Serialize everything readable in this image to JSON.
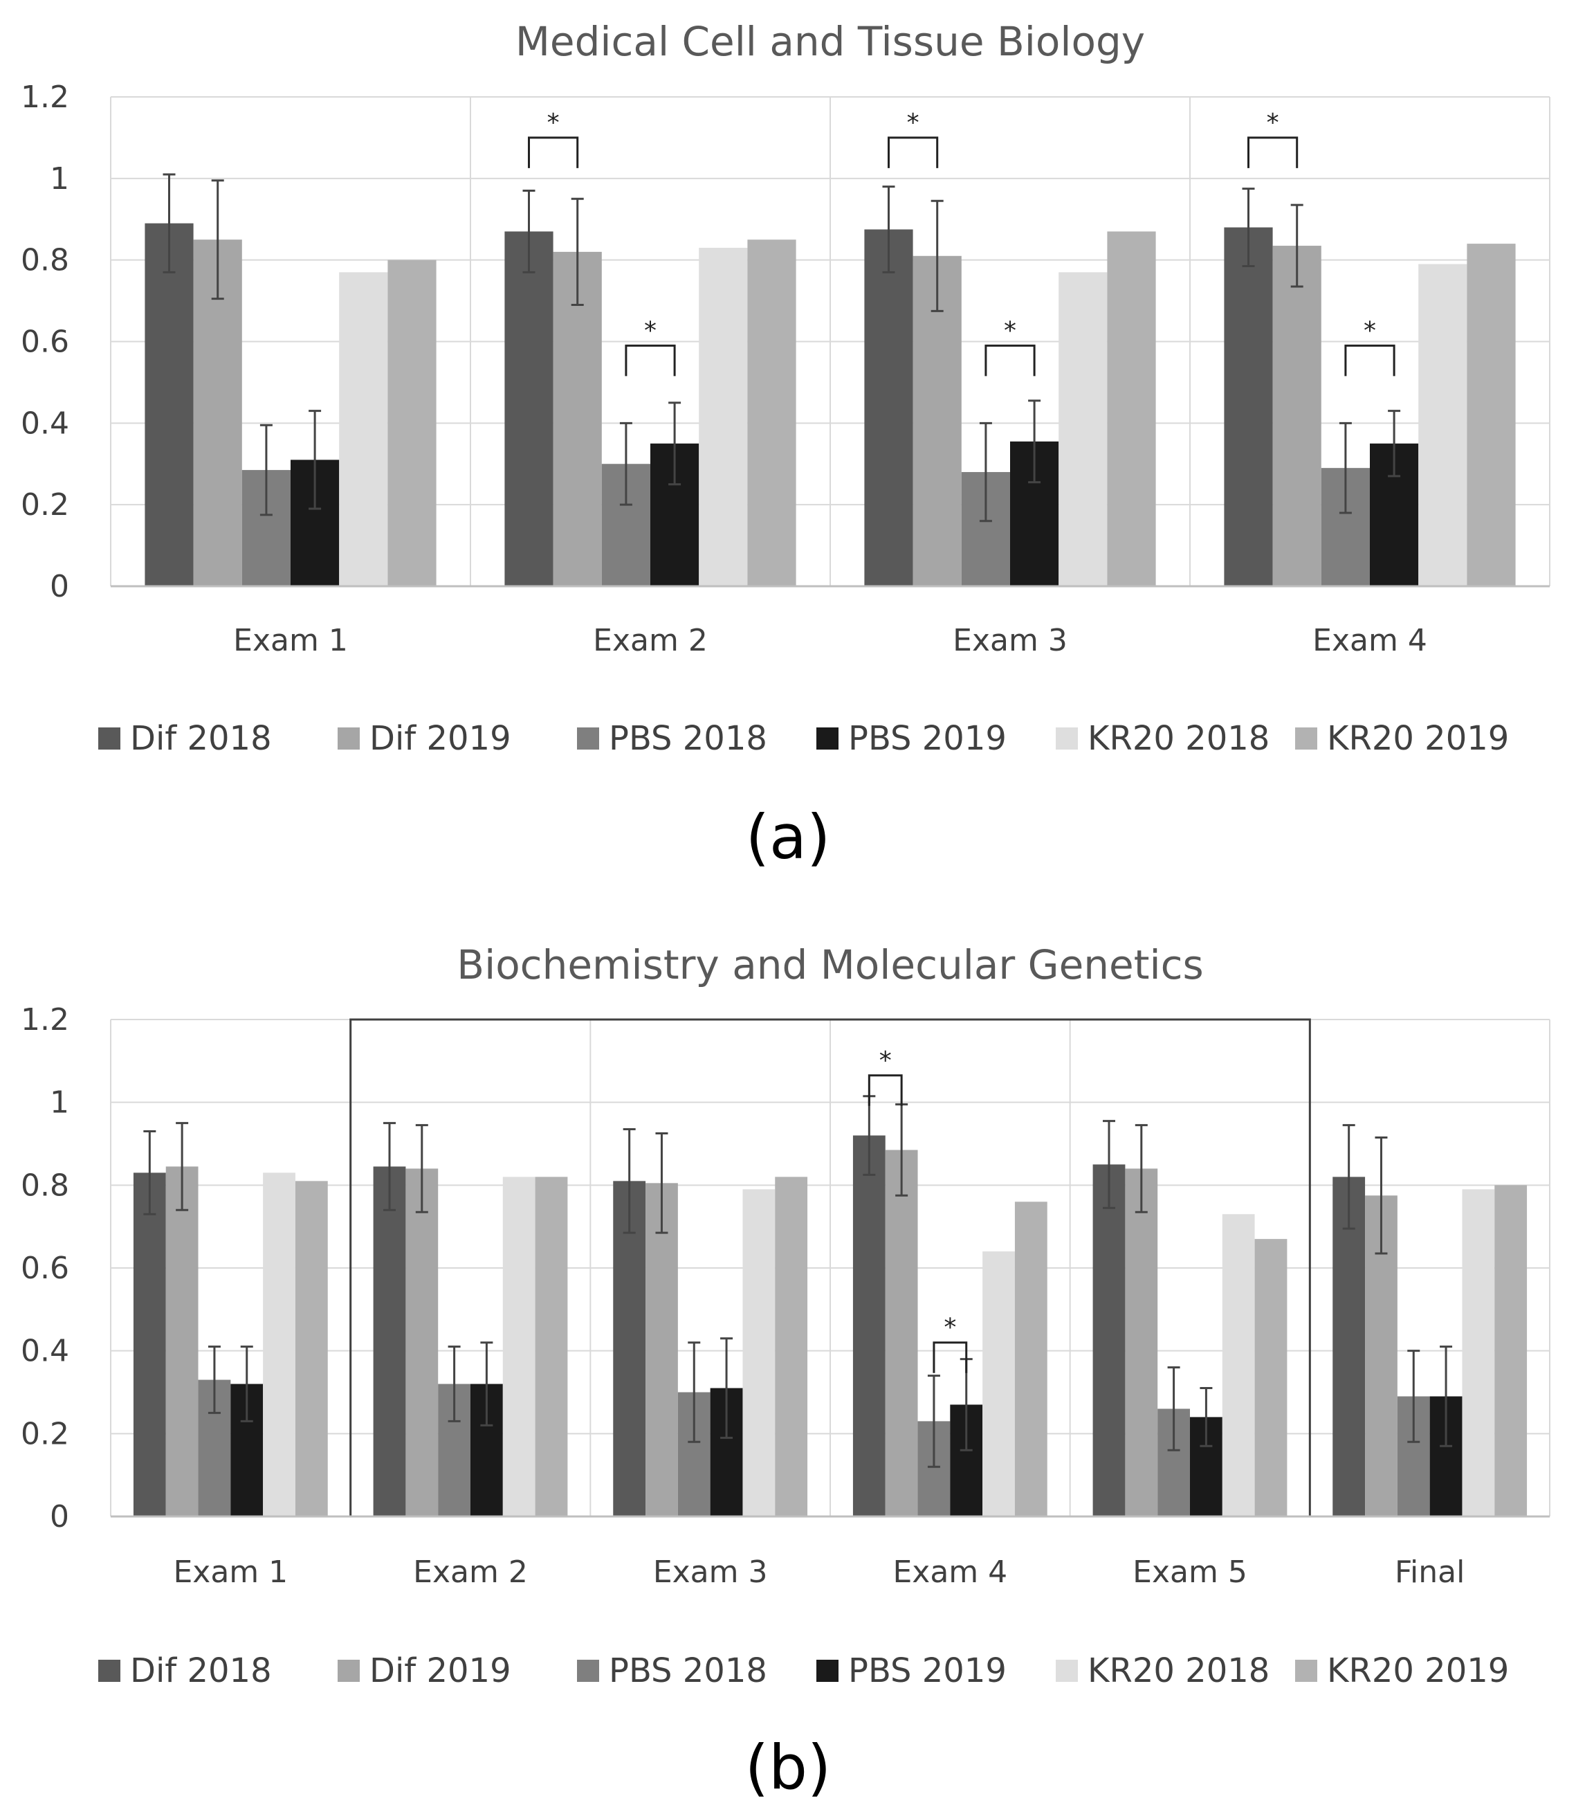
{
  "chart_data": [
    {
      "type": "bar",
      "title": "Medical Cell and Tissue Biology",
      "panel_label": "(a)",
      "xlabel": "",
      "ylabel": "",
      "ylim": [
        0,
        1.2
      ],
      "yticks": [
        "0",
        "0.2",
        "0.4",
        "0.6",
        "0.8",
        "1",
        "1.2"
      ],
      "categories": [
        "Exam 1",
        "Exam 2",
        "Exam 3",
        "Exam 4"
      ],
      "series": [
        {
          "name": "Dif 2018",
          "color": "#595959",
          "values": [
            0.89,
            0.87,
            0.875,
            0.88
          ],
          "errors": [
            0.12,
            0.1,
            0.105,
            0.095
          ]
        },
        {
          "name": "Dif 2019",
          "color": "#a6a6a6",
          "values": [
            0.85,
            0.82,
            0.81,
            0.835
          ],
          "errors": [
            0.145,
            0.13,
            0.135,
            0.1
          ]
        },
        {
          "name": "PBS 2018",
          "color": "#7f7f7f",
          "values": [
            0.285,
            0.3,
            0.28,
            0.29
          ],
          "errors": [
            0.11,
            0.1,
            0.12,
            0.11
          ]
        },
        {
          "name": "PBS 2019",
          "color": "#1a1a1a",
          "values": [
            0.31,
            0.35,
            0.355,
            0.35
          ],
          "errors": [
            0.12,
            0.1,
            0.1,
            0.08
          ]
        },
        {
          "name": "KR20 2018",
          "color": "#dedede",
          "values": [
            0.77,
            0.83,
            0.77,
            0.79
          ],
          "errors": null
        },
        {
          "name": "KR20 2019",
          "color": "#b2b2b2",
          "values": [
            0.8,
            0.85,
            0.87,
            0.84
          ],
          "errors": null
        }
      ],
      "significance": [
        {
          "category": 1,
          "from_series": 0,
          "to_series": 1,
          "level": 1.1,
          "label": "*"
        },
        {
          "category": 1,
          "from_series": 2,
          "to_series": 3,
          "level": 0.59,
          "label": "*"
        },
        {
          "category": 2,
          "from_series": 0,
          "to_series": 1,
          "level": 1.1,
          "label": "*"
        },
        {
          "category": 2,
          "from_series": 2,
          "to_series": 3,
          "level": 0.59,
          "label": "*"
        },
        {
          "category": 3,
          "from_series": 0,
          "to_series": 1,
          "level": 1.1,
          "label": "*"
        },
        {
          "category": 3,
          "from_series": 2,
          "to_series": 3,
          "level": 0.59,
          "label": "*"
        }
      ],
      "grid": true,
      "legend_position": "bottom"
    },
    {
      "type": "bar",
      "title": "Biochemistry and Molecular Genetics",
      "panel_label": "(b)",
      "xlabel": "",
      "ylabel": "",
      "ylim": [
        0,
        1.2
      ],
      "yticks": [
        "0",
        "0.2",
        "0.4",
        "0.6",
        "0.8",
        "1",
        "1.2"
      ],
      "categories": [
        "Exam 1",
        "Exam 2",
        "Exam 3",
        "Exam 4",
        "Exam 5",
        "Final"
      ],
      "series": [
        {
          "name": "Dif 2018",
          "color": "#595959",
          "values": [
            0.83,
            0.845,
            0.81,
            0.92,
            0.85,
            0.82
          ],
          "errors": [
            0.1,
            0.105,
            0.125,
            0.095,
            0.105,
            0.125
          ]
        },
        {
          "name": "Dif 2019",
          "color": "#a6a6a6",
          "values": [
            0.845,
            0.84,
            0.805,
            0.885,
            0.84,
            0.775
          ],
          "errors": [
            0.105,
            0.105,
            0.12,
            0.11,
            0.105,
            0.14
          ]
        },
        {
          "name": "PBS 2018",
          "color": "#7f7f7f",
          "values": [
            0.33,
            0.32,
            0.3,
            0.23,
            0.26,
            0.29
          ],
          "errors": [
            0.08,
            0.09,
            0.12,
            0.11,
            0.1,
            0.11
          ]
        },
        {
          "name": "PBS 2019",
          "color": "#1a1a1a",
          "values": [
            0.32,
            0.32,
            0.31,
            0.27,
            0.24,
            0.29
          ],
          "errors": [
            0.09,
            0.1,
            0.12,
            0.11,
            0.07,
            0.12
          ]
        },
        {
          "name": "KR20 2018",
          "color": "#dedede",
          "values": [
            0.83,
            0.82,
            0.79,
            0.64,
            0.73,
            0.79
          ],
          "errors": null
        },
        {
          "name": "KR20 2019",
          "color": "#b2b2b2",
          "values": [
            0.81,
            0.82,
            0.82,
            0.76,
            0.67,
            0.8
          ],
          "errors": null
        }
      ],
      "significance": [
        {
          "category": 3,
          "from_series": 0,
          "to_series": 1,
          "level": 1.065,
          "label": "*"
        },
        {
          "category": 3,
          "from_series": 2,
          "to_series": 3,
          "level": 0.42,
          "label": "*"
        }
      ],
      "highlight_box": {
        "from_category": 1,
        "to_category": 4
      },
      "grid": true,
      "legend_position": "bottom"
    }
  ]
}
